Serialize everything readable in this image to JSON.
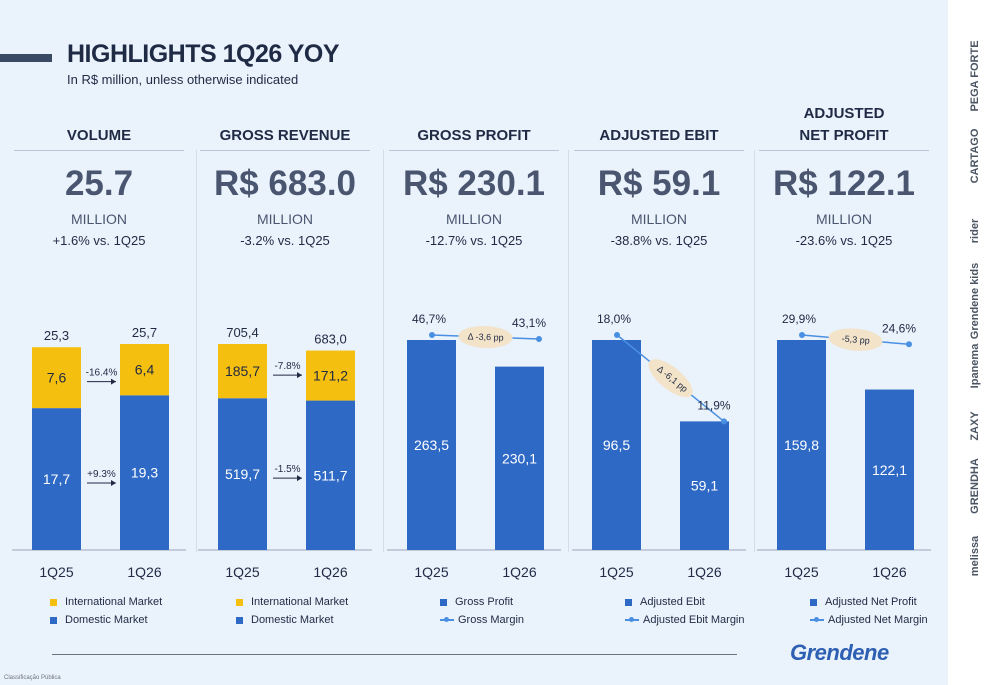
{
  "header": {
    "title": "HIGHLIGHTS 1Q26 YOY",
    "subtitle": "In R$ million, unless otherwise indicated"
  },
  "colors": {
    "domestic": "#2f69c6",
    "international": "#f5bf0f",
    "margin": "#4a90e2",
    "annotation": "#f2e3c9"
  },
  "panels": [
    {
      "title": "VOLUME",
      "value": "25.7",
      "unit": "MILLION",
      "delta": "+1.6% vs. 1Q25"
    },
    {
      "title": "GROSS REVENUE",
      "value": "R$ 683.0",
      "unit": "MILLION",
      "delta": "-3.2% vs. 1Q25"
    },
    {
      "title": "GROSS PROFIT",
      "value": "R$ 230.1",
      "unit": "MILLION",
      "delta": "-12.7% vs. 1Q25"
    },
    {
      "title": "ADJUSTED EBIT",
      "value": "R$ 59.1",
      "unit": "MILLION",
      "delta": "-38.8% vs. 1Q25"
    },
    {
      "title": "ADJUSTED\nNET PROFIT",
      "value": "R$ 122.1",
      "unit": "MILLION",
      "delta": "-23.6% vs. 1Q25"
    }
  ],
  "chart_data": [
    {
      "type": "bar",
      "stacked": true,
      "categories": [
        "1Q25",
        "1Q26"
      ],
      "series": [
        {
          "name": "Domestic Market",
          "values": [
            17.7,
            19.3
          ],
          "labels": [
            "17,7",
            "19,3"
          ]
        },
        {
          "name": "International Market",
          "values": [
            7.6,
            6.4
          ],
          "labels": [
            "7,6",
            "6,4"
          ]
        }
      ],
      "totals": [
        "25,3",
        "25,7"
      ],
      "changes": {
        "domestic": "+9.3%",
        "international": "-16.4%"
      },
      "legend": [
        "International Market",
        "Domestic Market"
      ]
    },
    {
      "type": "bar",
      "stacked": true,
      "categories": [
        "1Q25",
        "1Q26"
      ],
      "series": [
        {
          "name": "Domestic Market",
          "values": [
            519.7,
            511.7
          ],
          "labels": [
            "519,7",
            "511,7"
          ]
        },
        {
          "name": "International Market",
          "values": [
            185.7,
            171.2
          ],
          "labels": [
            "185,7",
            "171,2"
          ]
        }
      ],
      "totals": [
        "705,4",
        "683,0"
      ],
      "changes": {
        "domestic": "-1.5%",
        "international": "-7.8%"
      },
      "legend": [
        "International Market",
        "Domestic Market"
      ]
    },
    {
      "type": "bar",
      "categories": [
        "1Q25",
        "1Q26"
      ],
      "series": [
        {
          "name": "Gross Profit",
          "values": [
            263.5,
            230.1
          ],
          "labels": [
            "263,5",
            "230,1"
          ]
        }
      ],
      "margin": {
        "name": "Gross Margin",
        "values": [
          46.7,
          43.1
        ],
        "labels": [
          "46,7%",
          "43,1%"
        ],
        "change": "Δ -3,6 pp"
      },
      "legend": [
        "Gross Profit",
        "Gross Margin"
      ]
    },
    {
      "type": "bar",
      "categories": [
        "1Q25",
        "1Q26"
      ],
      "series": [
        {
          "name": "Adjusted Ebit",
          "values": [
            96.5,
            59.1
          ],
          "labels": [
            "96,5",
            "59,1"
          ]
        }
      ],
      "margin": {
        "name": "Adjusted Ebit Margin",
        "values": [
          18.0,
          11.9
        ],
        "labels": [
          "18,0%",
          "11,9%"
        ],
        "change": "Δ -6,1 pp"
      },
      "legend": [
        "Adjusted Ebit",
        "Adjusted Ebit Margin"
      ]
    },
    {
      "type": "bar",
      "categories": [
        "1Q25",
        "1Q26"
      ],
      "series": [
        {
          "name": "Adjusted Net Profit",
          "values": [
            159.8,
            122.1
          ],
          "labels": [
            "159,8",
            "122,1"
          ]
        }
      ],
      "margin": {
        "name": "Adjusted Net Margin",
        "values": [
          29.9,
          24.6
        ],
        "labels": [
          "29,9%",
          "24,6%"
        ],
        "change": "-5,3 pp"
      },
      "legend": [
        "Adjusted Net Profit",
        "Adjusted Net Margin"
      ]
    }
  ],
  "footer": {
    "logo": "Grendene",
    "classification": "Classificação Pública"
  },
  "brands": [
    "PEGA FORTE",
    "CARTAGO",
    "rider",
    "Grendene kids",
    "Ipanema",
    "ZAXY",
    "GRENDHA",
    "melissa"
  ]
}
